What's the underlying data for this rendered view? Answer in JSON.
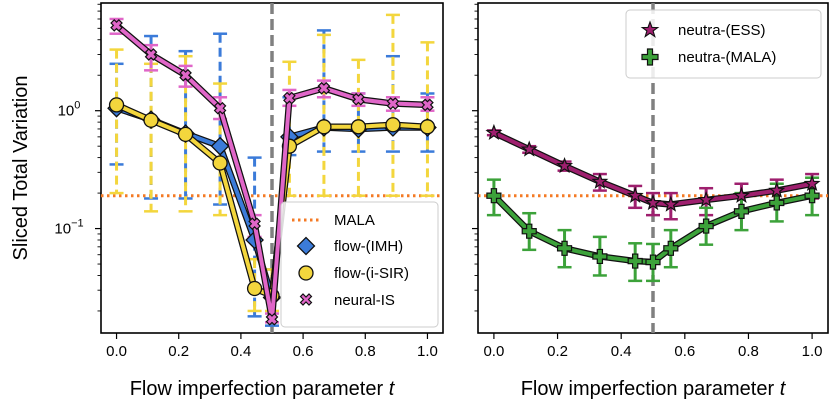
{
  "chart_data": [
    {
      "type": "line",
      "panel": "left",
      "xlabel": "Flow imperfection parameter",
      "xlabel_var": "t",
      "ylabel": "Sliced Total Variation",
      "yscale": "log",
      "ylim": [
        0.013,
        8.2
      ],
      "xlim": [
        -0.05,
        1.05
      ],
      "x_ticks": [
        0.0,
        0.2,
        0.4,
        0.6,
        0.8,
        1.0
      ],
      "x_tick_labels": [
        "0.0",
        "0.2",
        "0.4",
        "0.6",
        "0.8",
        "1.0"
      ],
      "y_ticks": [
        {
          "value": 1.0,
          "base": "10",
          "exp": "0"
        },
        {
          "value": 0.1,
          "base": "10",
          "exp": "−1"
        }
      ],
      "vline": {
        "x": 0.5,
        "color": "#808080"
      },
      "reference_lines": [
        {
          "name": "MALA",
          "y": 0.19,
          "color": "#f47a24"
        }
      ],
      "legend": {
        "position": "lower-right",
        "entries": [
          "MALA",
          "flow-(IMH)",
          "flow-(i-SIR)",
          "neural-IS"
        ]
      },
      "x": [
        0.0,
        0.111,
        0.222,
        0.333,
        0.444,
        0.5,
        0.556,
        0.667,
        0.778,
        0.889,
        1.0
      ],
      "series": [
        {
          "name": "flow-(IMH)",
          "color": "#3b7bd9",
          "marker": "diamond",
          "values": [
            1.05,
            0.84,
            0.64,
            0.5,
            0.08,
            0.026,
            0.6,
            0.72,
            0.7,
            0.72,
            0.72
          ],
          "err_low": [
            0.35,
            0.18,
            0.18,
            0.16,
            0.018,
            0.015,
            0.42,
            0.45,
            0.45,
            0.45,
            0.45
          ],
          "err_high": [
            2.5,
            4.3,
            3.2,
            4.5,
            0.4,
            0.045,
            1.3,
            4.8,
            1.4,
            2.9,
            1.4
          ]
        },
        {
          "name": "flow-(i-SIR)",
          "color": "#f3d63d",
          "marker": "circle",
          "values": [
            1.12,
            0.83,
            0.63,
            0.36,
            0.031,
            0.027,
            0.5,
            0.73,
            0.73,
            0.76,
            0.73
          ],
          "err_low": [
            0.2,
            0.14,
            0.14,
            0.13,
            0.02,
            0.02,
            0.19,
            0.19,
            0.19,
            0.19,
            0.19
          ],
          "err_high": [
            3.3,
            2.5,
            2.9,
            1.7,
            0.055,
            0.045,
            2.6,
            4.4,
            2.7,
            6.5,
            3.8
          ]
        },
        {
          "name": "neural-IS",
          "color": "#e066c8",
          "marker": "x",
          "values": [
            5.3,
            3.0,
            2.0,
            1.05,
            0.11,
            0.017,
            1.28,
            1.55,
            1.25,
            1.15,
            1.12
          ],
          "err_low": [
            4.5,
            2.2,
            1.6,
            0.85,
            0.085,
            0.016,
            1.1,
            1.3,
            1.1,
            1.0,
            1.0
          ],
          "err_high": [
            6.0,
            3.6,
            2.4,
            1.3,
            0.13,
            0.019,
            1.5,
            1.8,
            1.4,
            1.3,
            1.3
          ]
        }
      ]
    },
    {
      "type": "line",
      "panel": "right",
      "xlabel": "Flow imperfection parameter",
      "xlabel_var": "t",
      "yscale": "log",
      "ylim": [
        0.013,
        8.2
      ],
      "xlim": [
        -0.05,
        1.05
      ],
      "x_ticks": [
        0.0,
        0.2,
        0.4,
        0.6,
        0.8,
        1.0
      ],
      "x_tick_labels": [
        "0.0",
        "0.2",
        "0.4",
        "0.6",
        "0.8",
        "1.0"
      ],
      "vline": {
        "x": 0.5,
        "color": "#808080"
      },
      "reference_lines": [
        {
          "name": "MALA",
          "y": 0.19,
          "color": "#f47a24"
        }
      ],
      "legend": {
        "position": "top-right",
        "entries": [
          "neutra-(ESS)",
          "neutra-(MALA)"
        ]
      },
      "x": [
        0.0,
        0.111,
        0.222,
        0.333,
        0.444,
        0.5,
        0.556,
        0.667,
        0.778,
        0.889,
        1.0
      ],
      "series": [
        {
          "name": "neutra-(ESS)",
          "color": "#9e1f6e",
          "marker": "star",
          "values": [
            0.65,
            0.47,
            0.34,
            0.25,
            0.19,
            0.165,
            0.16,
            0.175,
            0.19,
            0.21,
            0.24
          ],
          "err_low": [
            0.62,
            0.44,
            0.31,
            0.21,
            0.15,
            0.13,
            0.12,
            0.13,
            0.14,
            0.16,
            0.18
          ],
          "err_high": [
            0.68,
            0.5,
            0.37,
            0.29,
            0.23,
            0.2,
            0.2,
            0.22,
            0.24,
            0.26,
            0.29
          ]
        },
        {
          "name": "neutra-(MALA)",
          "color": "#3ca23a",
          "marker": "plus",
          "values": [
            0.19,
            0.095,
            0.068,
            0.058,
            0.053,
            0.052,
            0.068,
            0.105,
            0.14,
            0.165,
            0.19
          ],
          "err_low": [
            0.13,
            0.066,
            0.047,
            0.04,
            0.036,
            0.036,
            0.047,
            0.073,
            0.097,
            0.115,
            0.13
          ],
          "err_high": [
            0.26,
            0.135,
            0.097,
            0.085,
            0.075,
            0.074,
            0.097,
            0.15,
            0.2,
            0.24,
            0.27
          ]
        }
      ]
    }
  ]
}
